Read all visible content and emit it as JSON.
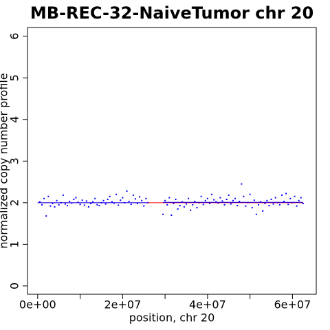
{
  "chart_data": {
    "type": "scatter",
    "title": "MB-REC-32-NaiveTumor chr 20",
    "x_label": "position, chr 20",
    "y_label": "normalized copy number profile",
    "xlim": [
      -2400000,
      65600000
    ],
    "ylim": [
      -0.2,
      6.21
    ],
    "xticks": [
      {
        "value": 0,
        "label": "0e+00"
      },
      {
        "value": 20000000,
        "label": "2e+07"
      },
      {
        "value": 40000000,
        "label": "4e+07"
      },
      {
        "value": 60000000,
        "label": "6e+07"
      }
    ],
    "xminorticks": [
      10000000,
      30000000,
      50000000
    ],
    "yticks": [
      0,
      1,
      2,
      3,
      4,
      5,
      6
    ],
    "points": {
      "color": "#0000ff",
      "x": [
        500000,
        1000000,
        1500000,
        2000000,
        2500000,
        3000000,
        3500000,
        4000000,
        4500000,
        5000000,
        5500000,
        6000000,
        6500000,
        7000000,
        7500000,
        8000000,
        8500000,
        9000000,
        9500000,
        10000000,
        10500000,
        11000000,
        11500000,
        12000000,
        12500000,
        13000000,
        13500000,
        14000000,
        14500000,
        15000000,
        15500000,
        16000000,
        16500000,
        17000000,
        17500000,
        18000000,
        18500000,
        19000000,
        19500000,
        20000000,
        20500000,
        21000000,
        21500000,
        22000000,
        22500000,
        23000000,
        23500000,
        24000000,
        24500000,
        25000000,
        25500000,
        26000000,
        29500000,
        30000000,
        30500000,
        31000000,
        31500000,
        32000000,
        32500000,
        33000000,
        33500000,
        34000000,
        34500000,
        35000000,
        35500000,
        36000000,
        36500000,
        37000000,
        37500000,
        38000000,
        38500000,
        39000000,
        39500000,
        40000000,
        40500000,
        41000000,
        41500000,
        42000000,
        42500000,
        43000000,
        43500000,
        44000000,
        44500000,
        45000000,
        45500000,
        46000000,
        46500000,
        47000000,
        47500000,
        48000000,
        48500000,
        49000000,
        49500000,
        50000000,
        50500000,
        51000000,
        51500000,
        52000000,
        52500000,
        53000000,
        53500000,
        54000000,
        54500000,
        55000000,
        55500000,
        56000000,
        56500000,
        57000000,
        57500000,
        58000000,
        58500000,
        59000000,
        59500000,
        60000000,
        60500000,
        61000000,
        61500000,
        62000000,
        62500000
      ],
      "y": [
        2.02,
        1.95,
        2.1,
        1.68,
        2.15,
        1.92,
        1.98,
        1.9,
        2.05,
        1.95,
        2.0,
        2.18,
        1.97,
        1.93,
        2.03,
        1.99,
        2.08,
        2.12,
        2.01,
        1.96,
        2.06,
        1.94,
        2.04,
        1.9,
        1.98,
        2.02,
        2.1,
        1.95,
        1.93,
        2.0,
        2.05,
        1.97,
        2.08,
        2.15,
        2.02,
        1.99,
        2.2,
        1.94,
        2.06,
        2.12,
        2.0,
        2.28,
        2.03,
        1.96,
        2.18,
        2.09,
        1.98,
        2.14,
        2.05,
        1.92,
        2.1,
        2.0,
        1.72,
        2.05,
        1.95,
        2.12,
        1.7,
        1.98,
        2.08,
        1.85,
        1.93,
        2.02,
        1.9,
        1.97,
        2.1,
        1.82,
        1.95,
        2.03,
        1.88,
        2.0,
        2.15,
        1.96,
        2.05,
        2.1,
        1.98,
        2.2,
        2.07,
        2.02,
        1.99,
        2.12,
        2.04,
        1.95,
        2.08,
        2.18,
        1.97,
        2.05,
        2.1,
        1.93,
        2.03,
        2.45,
        2.15,
        1.92,
        2.0,
        2.2,
        1.88,
        2.06,
        1.72,
        1.95,
        2.02,
        1.8,
        1.98,
        2.05,
        1.93,
        2.08,
        1.97,
        2.12,
        2.0,
        1.95,
        2.18,
        2.03,
        2.22,
        1.96,
        2.1,
        2.0,
        2.15,
        1.92,
        2.05,
        2.12,
        1.98
      ]
    },
    "lines": [
      {
        "color": "#ff0000",
        "x": [
          0,
          62500000
        ],
        "y": [
          2,
          2
        ]
      },
      {
        "color": "#0000ff",
        "x": [
          0,
          26000000
        ],
        "y": [
          2,
          2
        ]
      },
      {
        "color": "#0000ff",
        "x": [
          29500000,
          62500000
        ],
        "y": [
          2.01,
          2.01
        ]
      }
    ]
  }
}
